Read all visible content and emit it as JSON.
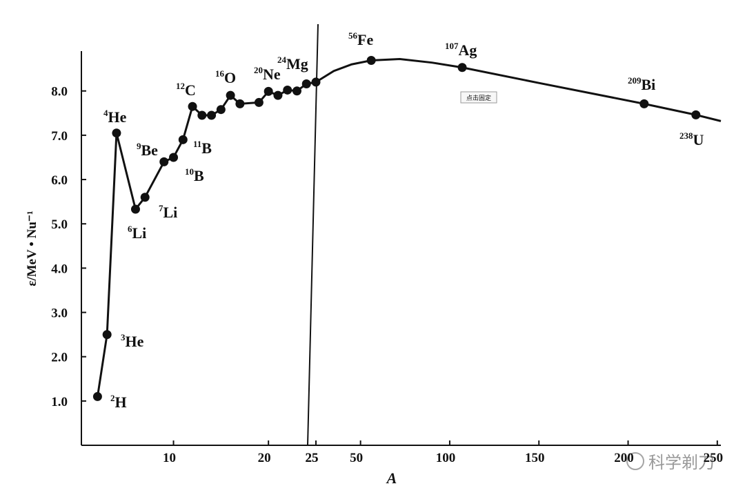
{
  "chart_data": [
    {
      "type": "line",
      "y_label": "ε/MeV • Nu⁻¹",
      "xlim": [
        0.3,
        25
      ],
      "xticks": [
        10,
        20,
        25
      ],
      "ylim": [
        0,
        8.9
      ],
      "yticks": [
        {
          "value": 1,
          "label": "1.0"
        },
        {
          "value": 2,
          "label": "2.0"
        },
        {
          "value": 3,
          "label": "3.0"
        },
        {
          "value": 4,
          "label": "4.0"
        },
        {
          "value": 5,
          "label": "5.0"
        },
        {
          "value": 6,
          "label": "6.0"
        },
        {
          "value": 7,
          "label": "7.0"
        },
        {
          "value": 8,
          "label": "8.0"
        }
      ],
      "color": "#111",
      "x": [
        2,
        3,
        4,
        6,
        7,
        9,
        10,
        11,
        12,
        13,
        14,
        15,
        16,
        17,
        19,
        20,
        21,
        22,
        23,
        24,
        25
      ],
      "values": [
        1.1,
        2.5,
        7.05,
        5.33,
        5.6,
        6.4,
        6.5,
        6.9,
        7.65,
        7.45,
        7.45,
        7.58,
        7.9,
        7.71,
        7.74,
        7.99,
        7.9,
        8.02,
        8.0,
        8.16,
        8.2
      ],
      "labels": [
        {
          "mass": "2",
          "symbol": "H"
        },
        {
          "mass": "3",
          "symbol": "He"
        },
        {
          "mass": "4",
          "symbol": "He"
        },
        {
          "mass": "6",
          "symbol": "Li"
        },
        {
          "mass": "7",
          "symbol": "Li"
        },
        {
          "mass": "9",
          "symbol": "Be"
        },
        {
          "mass": "10",
          "symbol": "B"
        },
        {
          "mass": "11",
          "symbol": "B"
        },
        {
          "mass": "12",
          "symbol": "C"
        },
        null,
        null,
        null,
        {
          "mass": "16",
          "symbol": "O"
        },
        null,
        null,
        {
          "mass": "20",
          "symbol": "Ne"
        },
        null,
        null,
        null,
        {
          "mass": "24",
          "symbol": "Mg"
        },
        null
      ]
    },
    {
      "type": "line",
      "x_label": "A",
      "xlim": [
        25,
        252
      ],
      "xticks": [
        25,
        50,
        100,
        150,
        200,
        250
      ],
      "ylim": [
        0,
        8.9
      ],
      "color": "#111",
      "x": [
        25,
        35,
        45,
        56,
        72,
        90,
        107,
        150,
        209,
        238,
        252
      ],
      "values": [
        8.2,
        8.45,
        8.6,
        8.69,
        8.72,
        8.64,
        8.53,
        8.18,
        7.71,
        7.46,
        7.32
      ],
      "points": {
        "x": [
          56,
          107,
          209,
          238
        ],
        "values": [
          8.69,
          8.53,
          7.71,
          7.46
        ],
        "labels": [
          {
            "mass": "56",
            "symbol": "Fe"
          },
          {
            "mass": "107",
            "symbol": "Ag"
          },
          {
            "mass": "209",
            "symbol": "Bi"
          },
          {
            "mass": "238",
            "symbol": "U"
          }
        ]
      }
    }
  ],
  "tooltip": "点击固定",
  "watermark": "科学剃刀"
}
